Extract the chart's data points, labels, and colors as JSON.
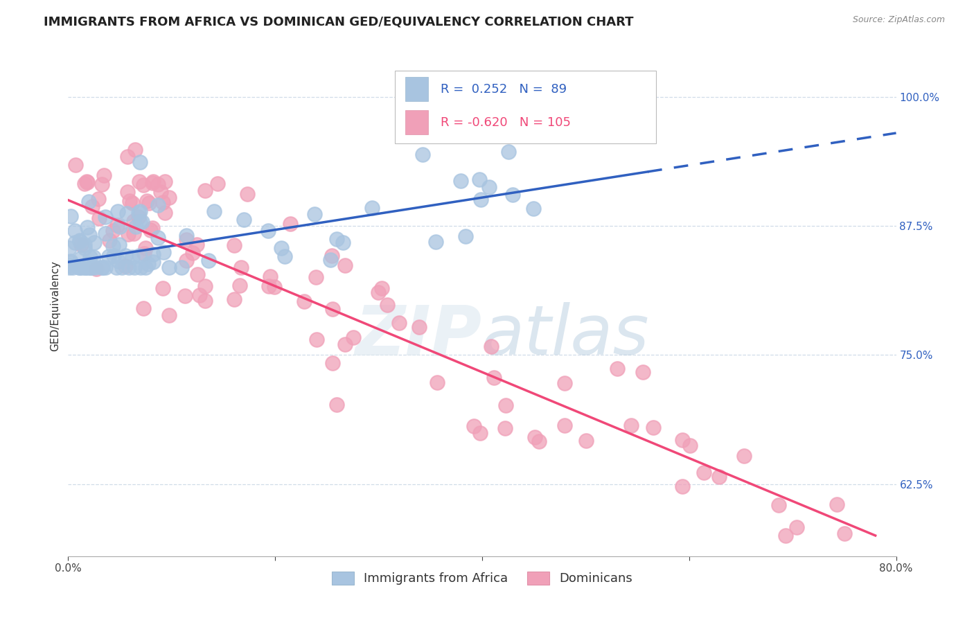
{
  "title": "IMMIGRANTS FROM AFRICA VS DOMINICAN GED/EQUIVALENCY CORRELATION CHART",
  "source_text": "Source: ZipAtlas.com",
  "ylabel": "GED/Equivalency",
  "legend_label1": "Immigrants from Africa",
  "legend_label2": "Dominicans",
  "r1": 0.252,
  "n1": 89,
  "r2": -0.62,
  "n2": 105,
  "xmin": 0.0,
  "xmax": 0.8,
  "ymin": 0.555,
  "ymax": 1.04,
  "yticks": [
    0.625,
    0.75,
    0.875,
    1.0
  ],
  "ytick_labels": [
    "62.5%",
    "75.0%",
    "87.5%",
    "100.0%"
  ],
  "xticks": [
    0.0,
    0.2,
    0.4,
    0.6,
    0.8
  ],
  "xtick_labels": [
    "0.0%",
    "",
    "",
    "",
    "80.0%"
  ],
  "color1": "#a8c4e0",
  "color2": "#f0a0b8",
  "line1_color": "#3060c0",
  "line2_color": "#f04878",
  "grid_color": "#d0dce8",
  "background_color": "#ffffff",
  "title_fontsize": 13,
  "axis_label_fontsize": 11,
  "tick_fontsize": 11,
  "legend_fontsize": 13,
  "blue_line_y0": 0.84,
  "blue_line_y1": 0.965,
  "blue_line_x_solid_end": 0.56,
  "pink_line_y0": 0.9,
  "pink_line_y1": 0.575,
  "pink_line_x1": 0.78
}
